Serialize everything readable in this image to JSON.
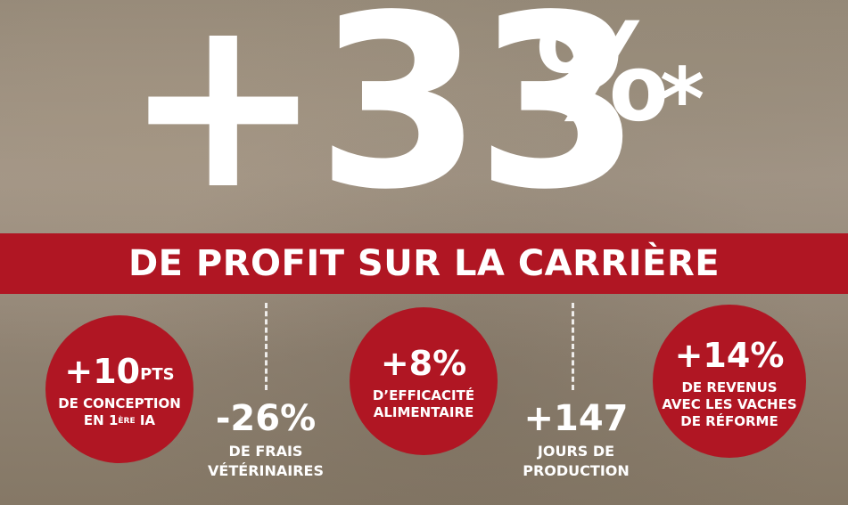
{
  "hero": {
    "value": "+33",
    "percent": "%",
    "asterisk": "*"
  },
  "band": {
    "text": "DE PROFIT SUR LA CARRIÈRE"
  },
  "stats": {
    "conception": {
      "value": "+10",
      "unit": "PTS",
      "line1": "DE CONCEPTION",
      "line2_prefix": "EN 1",
      "line2_sup": "ÈRE",
      "line2_suffix": " IA"
    },
    "frais": {
      "value": "-26%",
      "line1": "DE FRAIS",
      "line2": "VÉTÉRINAIRES"
    },
    "efficacite": {
      "value": "+8%",
      "line1": "D’EFFICACITÉ",
      "line2": "ALIMENTAIRE"
    },
    "production": {
      "value": "+147",
      "line1": "JOURS DE",
      "line2": "PRODUCTION"
    },
    "revenus": {
      "value": "+14%",
      "line1": "DE REVENUS",
      "line2": "AVEC LES VACHES",
      "line3": "DE RÉFORME"
    }
  },
  "colors": {
    "accent_red": "#b01623",
    "text": "#ffffff"
  }
}
